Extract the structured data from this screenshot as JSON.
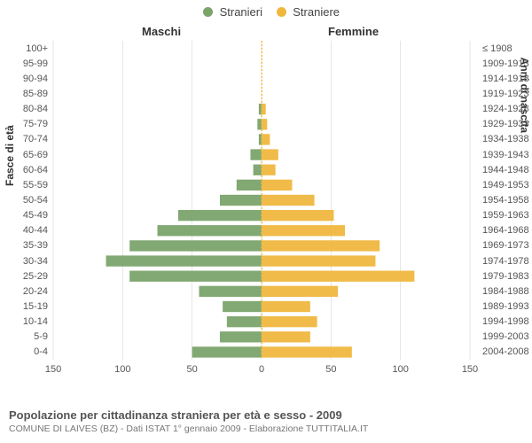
{
  "legend": {
    "m": "Stranieri",
    "f": "Straniere"
  },
  "column_headers": {
    "m": "Maschi",
    "f": "Femmine"
  },
  "axis_labels": {
    "left": "Fasce di età",
    "right": "Anni di nascita"
  },
  "colors": {
    "m": "#7ba46b",
    "f": "#efb73e",
    "grid": "#e6e6e6",
    "zero_dash": "#f0c040",
    "bg": "#ffffff",
    "text": "#555555"
  },
  "fontsize": {
    "legend": 13,
    "col_header": 13,
    "tick": 11,
    "axis_label": 12,
    "footer_title": 13,
    "footer_sub": 10.5
  },
  "x": {
    "lim": 150,
    "ticks_left": [
      150,
      100,
      50,
      0
    ],
    "ticks_right": [
      0,
      50,
      100,
      150
    ]
  },
  "categories": [
    {
      "age": "100+",
      "birth": "≤ 1908",
      "m": 0,
      "f": 0
    },
    {
      "age": "95-99",
      "birth": "1909-1913",
      "m": 0,
      "f": 0
    },
    {
      "age": "90-94",
      "birth": "1914-1918",
      "m": 0,
      "f": 0
    },
    {
      "age": "85-89",
      "birth": "1919-1923",
      "m": 0,
      "f": 0
    },
    {
      "age": "80-84",
      "birth": "1924-1928",
      "m": 2,
      "f": 3
    },
    {
      "age": "75-79",
      "birth": "1929-1933",
      "m": 3,
      "f": 4
    },
    {
      "age": "70-74",
      "birth": "1934-1938",
      "m": 2,
      "f": 6
    },
    {
      "age": "65-69",
      "birth": "1939-1943",
      "m": 8,
      "f": 12
    },
    {
      "age": "60-64",
      "birth": "1944-1948",
      "m": 6,
      "f": 10
    },
    {
      "age": "55-59",
      "birth": "1949-1953",
      "m": 18,
      "f": 22
    },
    {
      "age": "50-54",
      "birth": "1954-1958",
      "m": 30,
      "f": 38
    },
    {
      "age": "45-49",
      "birth": "1959-1963",
      "m": 60,
      "f": 52
    },
    {
      "age": "40-44",
      "birth": "1964-1968",
      "m": 75,
      "f": 60
    },
    {
      "age": "35-39",
      "birth": "1969-1973",
      "m": 95,
      "f": 85
    },
    {
      "age": "30-34",
      "birth": "1974-1978",
      "m": 112,
      "f": 82
    },
    {
      "age": "25-29",
      "birth": "1979-1983",
      "m": 95,
      "f": 110
    },
    {
      "age": "20-24",
      "birth": "1984-1988",
      "m": 45,
      "f": 55
    },
    {
      "age": "15-19",
      "birth": "1989-1993",
      "m": 28,
      "f": 35
    },
    {
      "age": "10-14",
      "birth": "1994-1998",
      "m": 25,
      "f": 40
    },
    {
      "age": "5-9",
      "birth": "1999-2003",
      "m": 30,
      "f": 35
    },
    {
      "age": "0-4",
      "birth": "2004-2008",
      "m": 50,
      "f": 65
    }
  ],
  "bar_style": {
    "height_ratio": 0.72
  },
  "footer": {
    "title": "Popolazione per cittadinanza straniera per età e sesso - 2009",
    "subtitle": "COMUNE DI LAIVES (BZ) - Dati ISTAT 1° gennaio 2009 - Elaborazione TUTTITALIA.IT"
  }
}
